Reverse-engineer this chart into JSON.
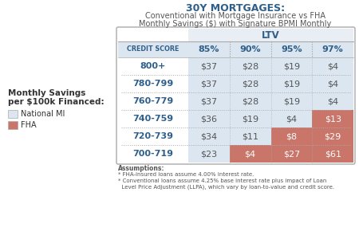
{
  "title": "30Y MORTGAGES:",
  "subtitle1": "Conventional with Mortgage Insurance vs FHA",
  "subtitle2": "Monthly Savings ($) with Signature BPMI Monthly",
  "ltv_header": "LTV",
  "col_header": "CREDIT SCORE",
  "ltv_cols": [
    "85%",
    "90%",
    "95%",
    "97%"
  ],
  "credit_scores": [
    "800+",
    "780-799",
    "760-779",
    "740-759",
    "720-739",
    "700-719"
  ],
  "values": [
    [
      "$37",
      "$28",
      "$19",
      "$4"
    ],
    [
      "$37",
      "$28",
      "$19",
      "$4"
    ],
    [
      "$37",
      "$28",
      "$19",
      "$4"
    ],
    [
      "$36",
      "$19",
      "$4",
      "$13"
    ],
    [
      "$34",
      "$11",
      "$8",
      "$29"
    ],
    [
      "$23",
      "$4",
      "$27",
      "$61"
    ]
  ],
  "cell_colors": [
    [
      "light",
      "light",
      "light",
      "light"
    ],
    [
      "light",
      "light",
      "light",
      "light"
    ],
    [
      "light",
      "light",
      "light",
      "light"
    ],
    [
      "light",
      "light",
      "light",
      "red"
    ],
    [
      "light",
      "light",
      "red",
      "red"
    ],
    [
      "light",
      "red",
      "red",
      "red"
    ]
  ],
  "color_light": "#dce6f0",
  "color_red": "#c9756a",
  "color_white": "#ffffff",
  "text_blue": "#2e5f8a",
  "text_dark": "#555555",
  "text_white": "#ffffff",
  "assumptions_line1": "Assumptions:",
  "assumptions_line2": "* FHA-insured loans assume 4.00% interest rate.",
  "assumptions_line3": "* Conventional loans assume 4.25% base interest rate plus impact of Loan",
  "assumptions_line4": "  Level Price Adjustment (LLPA), which vary by loan-to-value and credit score.",
  "legend_label1": "National MI",
  "legend_label2": "FHA",
  "legend_color1": "#dce6f0",
  "legend_color2": "#c9756a",
  "sidebar_title1": "Monthly Savings",
  "sidebar_title2": "per $100k Financed:"
}
